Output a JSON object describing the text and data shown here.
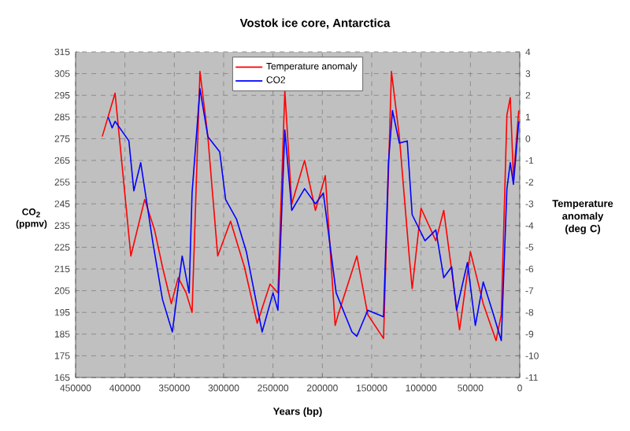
{
  "chart_data": {
    "type": "line",
    "title": "Vostok ice core, Antarctica",
    "xlabel": "Years (bp)",
    "ylabel": "CO$_{2}$ (ppmv)",
    "y2label": "Temperature anomaly (deg C)",
    "xlim": [
      450000,
      0
    ],
    "xticks": [
      450000,
      400000,
      350000,
      300000,
      250000,
      200000,
      150000,
      100000,
      50000,
      0
    ],
    "ylim": [
      165,
      315
    ],
    "yticks": [
      165,
      175,
      185,
      195,
      205,
      215,
      225,
      235,
      245,
      255,
      265,
      275,
      285,
      295,
      305,
      315
    ],
    "y2lim": [
      -11,
      4
    ],
    "y2ticks": [
      -11,
      -10,
      -9,
      -8,
      -7,
      -6,
      -5,
      -4,
      -3,
      -2,
      -1,
      0,
      1,
      2,
      3,
      4
    ],
    "grid": true,
    "legend": "top",
    "marker": "none",
    "line_style": "solid",
    "series": [
      {
        "name": "Temperature anomaly",
        "color": "#ff0000",
        "axis": "y2",
        "x": [
          423000,
          410000,
          394000,
          380000,
          370000,
          362000,
          353000,
          346000,
          338000,
          332000,
          324000,
          316000,
          306000,
          293000,
          279000,
          266000,
          253000,
          245000,
          238000,
          231000,
          218000,
          207000,
          197000,
          187000,
          184000,
          165000,
          154000,
          138000,
          130000,
          122000,
          112000,
          109000,
          100000,
          85000,
          77000,
          66000,
          61000,
          50000,
          37000,
          24000,
          18700,
          13000,
          9600,
          6400,
          1000
        ],
        "values": [
          0.1,
          2.1,
          -5.4,
          -2.8,
          -4.2,
          -5.9,
          -7.6,
          -6.4,
          -7.1,
          -8.0,
          3.1,
          0.1,
          -5.4,
          -3.8,
          -5.9,
          -8.5,
          -6.7,
          -7.1,
          2.2,
          -3.0,
          -1.0,
          -3.3,
          -1.7,
          -8.6,
          -8.1,
          -5.4,
          -8.1,
          -9.2,
          3.1,
          0.1,
          -5.4,
          -6.9,
          -3.2,
          -4.7,
          -3.3,
          -7.1,
          -8.8,
          -5.2,
          -7.6,
          -9.3,
          -8.1,
          1.1,
          1.9,
          -1.8,
          1.3
        ]
      },
      {
        "name": "CO2",
        "color": "#0000ff",
        "x": [
          417000,
          413000,
          410000,
          396000,
          391000,
          384000,
          372000,
          362000,
          352000,
          342000,
          335000,
          332000,
          324000,
          316000,
          304000,
          298000,
          287000,
          277000,
          261000,
          250000,
          245000,
          238000,
          231000,
          218000,
          207000,
          199000,
          186000,
          170000,
          165000,
          154000,
          138000,
          133000,
          129000,
          122000,
          114000,
          109000,
          96000,
          85000,
          77000,
          69000,
          64000,
          53000,
          45000,
          37000,
          26600,
          18700,
          13000,
          9600,
          6400,
          1000
        ],
        "values": [
          285,
          280,
          283,
          274,
          251,
          264,
          228,
          201,
          186,
          221,
          204,
          250,
          298,
          276,
          269,
          247,
          238,
          223,
          186,
          204,
          196,
          279,
          242,
          252,
          245,
          250,
          204,
          186,
          184,
          196,
          193,
          264,
          288,
          273,
          274,
          240,
          228,
          233,
          211,
          216,
          196,
          218,
          189,
          209,
          194,
          182,
          252,
          264,
          254,
          283
        ]
      }
    ]
  }
}
